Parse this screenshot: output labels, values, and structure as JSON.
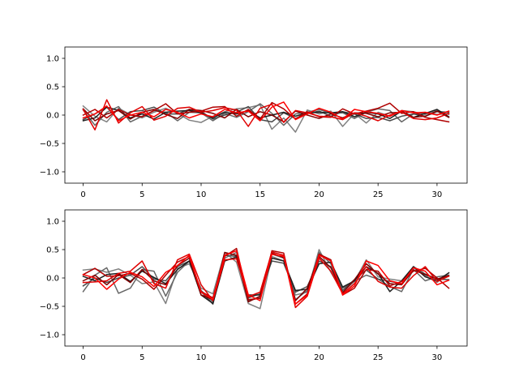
{
  "chart_data": [
    {
      "type": "line",
      "title": "",
      "xlabel": "",
      "ylabel": "",
      "xlim": [
        -1.55,
        32.55
      ],
      "ylim": [
        -1.2,
        1.2
      ],
      "xticks": [
        0,
        5,
        10,
        15,
        20,
        25,
        30
      ],
      "yticks": [
        -1.0,
        -0.5,
        0.0,
        0.5,
        1.0
      ],
      "xtick_labels": [
        "0",
        "5",
        "10",
        "15",
        "20",
        "25",
        "30"
      ],
      "ytick_labels": [
        "−1.0",
        "−0.5",
        "0.0",
        "0.5",
        "1.0"
      ],
      "grid": false,
      "x": [
        0,
        1,
        2,
        3,
        4,
        5,
        6,
        7,
        8,
        9,
        10,
        11,
        12,
        13,
        14,
        15,
        16,
        17,
        18,
        19,
        20,
        21,
        22,
        23,
        24,
        25,
        26,
        27,
        28,
        29,
        30,
        31
      ],
      "series": [
        {
          "color": "#808080",
          "values": [
            0.16,
            -0.02,
            -0.12,
            0.12,
            0.01,
            -0.05,
            0.05,
            0.12,
            0.03,
            -0.09,
            -0.13,
            -0.02,
            0.06,
            0.11,
            0.13,
            0.18,
            -0.25,
            -0.05,
            -0.3,
            0.09,
            0.02,
            0.07,
            -0.2,
            0.03,
            -0.14,
            0.05,
            -0.02,
            0.08,
            0.06,
            0.01,
            0.08,
            0.01
          ]
        },
        {
          "color": "#666666",
          "values": [
            0.09,
            -0.18,
            0.05,
            0.15,
            -0.12,
            -0.02,
            0.08,
            0.05,
            -0.1,
            0.05,
            0.04,
            -0.1,
            0.03,
            -0.04,
            0.06,
            0.2,
            0.03,
            -0.18,
            0.02,
            0.05,
            0.1,
            0.03,
            0.04,
            -0.06,
            0.05,
            0.11,
            0.08,
            -0.12,
            0.02,
            0.03,
            0.01,
            0.03
          ]
        },
        {
          "color": "#4a4a4a",
          "values": [
            -0.08,
            0.02,
            0.14,
            -0.08,
            0.06,
            0.08,
            0.14,
            0.02,
            0.02,
            0.1,
            0.06,
            -0.07,
            0.0,
            0.05,
            0.15,
            -0.08,
            -0.12,
            0.04,
            -0.06,
            0.03,
            0.07,
            -0.02,
            0.06,
            0.02,
            -0.06,
            -0.04,
            -0.1,
            -0.02,
            0.02,
            -0.02,
            0.06,
            0.05
          ]
        },
        {
          "color": "#202020",
          "values": [
            -0.1,
            -0.05,
            0.14,
            0.08,
            -0.05,
            0.02,
            -0.07,
            0.05,
            0.07,
            0.08,
            0.04,
            -0.05,
            0.05,
            0.02,
            0.08,
            -0.05,
            0.0,
            0.05,
            -0.02,
            0.04,
            0.05,
            0.04,
            0.06,
            -0.03,
            0.05,
            0.02,
            -0.06,
            0.07,
            -0.04,
            0.03,
            0.1,
            -0.03
          ]
        },
        {
          "color": "#800000",
          "values": [
            0.11,
            -0.1,
            0.02,
            0.08,
            -0.07,
            0.05,
            0.1,
            0.01,
            -0.06,
            0.1,
            0.08,
            0.03,
            -0.05,
            0.1,
            -0.03,
            0.06,
            0.0,
            -0.12,
            0.07,
            0.0,
            -0.06,
            0.02,
            -0.05,
            0.04,
            0.03,
            -0.03,
            0.04,
            0.05,
            -0.04,
            -0.02,
            0.07,
            -0.04
          ]
        },
        {
          "color": "#b00000",
          "values": [
            0.0,
            0.1,
            -0.05,
            0.1,
            0.0,
            -0.03,
            0.08,
            0.2,
            0.02,
            0.05,
            0.07,
            0.14,
            0.15,
            -0.02,
            0.1,
            -0.07,
            0.22,
            0.11,
            -0.07,
            0.06,
            -0.03,
            -0.04,
            0.11,
            0.02,
            0.07,
            0.12,
            0.21,
            0.03,
            0.06,
            -0.04,
            -0.08,
            -0.12
          ]
        },
        {
          "color": "#e00000",
          "values": [
            0.1,
            -0.26,
            0.27,
            -0.14,
            0.04,
            0.15,
            -0.09,
            -0.02,
            0.12,
            0.14,
            0.05,
            0.08,
            0.13,
            0.09,
            -0.2,
            0.12,
            0.19,
            -0.13,
            0.08,
            0.04,
            -0.02,
            -0.03,
            -0.08,
            0.04,
            -0.02,
            -0.1,
            0.0,
            0.06,
            -0.06,
            -0.08,
            -0.05,
            0.03
          ]
        },
        {
          "color": "#ff0000",
          "values": [
            -0.05,
            0.02,
            0.16,
            -0.1,
            0.0,
            0.05,
            -0.03,
            0.1,
            0.05,
            -0.05,
            0.02,
            -0.03,
            0.1,
            0.04,
            0.07,
            -0.1,
            0.14,
            0.23,
            -0.08,
            0.02,
            0.12,
            0.05,
            -0.07,
            0.1,
            0.06,
            0.03,
            -0.02,
            0.08,
            0.04,
            0.05,
            0.0,
            0.07
          ]
        }
      ]
    },
    {
      "type": "line",
      "title": "",
      "xlabel": "",
      "ylabel": "",
      "xlim": [
        -1.55,
        32.55
      ],
      "ylim": [
        -1.2,
        1.2
      ],
      "xticks": [
        0,
        5,
        10,
        15,
        20,
        25,
        30
      ],
      "yticks": [
        -1.0,
        -0.5,
        0.0,
        0.5,
        1.0
      ],
      "xtick_labels": [
        "0",
        "5",
        "10",
        "15",
        "20",
        "25",
        "30"
      ],
      "ytick_labels": [
        "−1.0",
        "−0.5",
        "0.0",
        "0.5",
        "1.0"
      ],
      "grid": false,
      "x": [
        0,
        1,
        2,
        3,
        4,
        5,
        6,
        7,
        8,
        9,
        10,
        11,
        12,
        13,
        14,
        15,
        16,
        17,
        18,
        19,
        20,
        21,
        22,
        23,
        24,
        25,
        26,
        27,
        28,
        29,
        30,
        31
      ],
      "series": [
        {
          "color": "#808080",
          "values": [
            0.14,
            0.16,
            0.1,
            0.16,
            0.05,
            -0.1,
            -0.07,
            -0.45,
            0.17,
            0.25,
            -0.18,
            -0.28,
            0.45,
            0.28,
            -0.45,
            -0.54,
            0.38,
            0.3,
            -0.3,
            -0.25,
            0.5,
            0.1,
            -0.25,
            -0.06,
            0.32,
            0.02,
            -0.02,
            -0.05,
            0.18,
            0.04,
            -0.08,
            0.09
          ]
        },
        {
          "color": "#666666",
          "values": [
            -0.24,
            0.05,
            0.18,
            -0.27,
            -0.18,
            0.15,
            0.12,
            -0.32,
            0.1,
            0.3,
            -0.22,
            -0.42,
            0.35,
            0.45,
            -0.4,
            -0.35,
            0.42,
            0.35,
            -0.38,
            -0.22,
            0.45,
            0.25,
            -0.18,
            -0.06,
            0.05,
            -0.02,
            -0.15,
            -0.24,
            0.15,
            -0.05,
            0.02,
            0.05
          ]
        },
        {
          "color": "#4a4a4a",
          "values": [
            -0.14,
            0.0,
            -0.08,
            0.0,
            0.05,
            0.2,
            -0.02,
            -0.05,
            0.2,
            0.3,
            -0.24,
            -0.46,
            0.4,
            0.38,
            -0.35,
            -0.28,
            0.3,
            0.26,
            -0.25,
            -0.15,
            0.3,
            0.2,
            -0.22,
            -0.03,
            0.14,
            -0.02,
            -0.06,
            -0.1,
            0.2,
            0.07,
            -0.02,
            -0.03
          ]
        },
        {
          "color": "#202020",
          "values": [
            0.03,
            -0.05,
            0.06,
            0.08,
            -0.06,
            0.12,
            0.01,
            -0.1,
            0.15,
            0.3,
            -0.3,
            -0.45,
            0.3,
            0.37,
            -0.3,
            -0.3,
            0.35,
            0.3,
            -0.22,
            -0.2,
            0.25,
            0.28,
            -0.16,
            -0.05,
            0.2,
            0.08,
            -0.24,
            -0.05,
            0.2,
            0.02,
            -0.05,
            0.09
          ]
        },
        {
          "color": "#800000",
          "values": [
            -0.05,
            0.05,
            -0.12,
            0.06,
            -0.08,
            0.15,
            -0.05,
            -0.12,
            0.22,
            0.35,
            -0.3,
            -0.38,
            0.45,
            0.4,
            -0.42,
            -0.32,
            0.44,
            0.36,
            -0.4,
            -0.18,
            0.38,
            0.18,
            -0.26,
            -0.03,
            0.25,
            0.07,
            -0.1,
            -0.12,
            0.14,
            0.06,
            -0.02,
            0.04
          ]
        },
        {
          "color": "#b00000",
          "values": [
            0.06,
            0.17,
            0.03,
            0.04,
            0.08,
            -0.02,
            -0.2,
            0.05,
            0.28,
            0.38,
            -0.24,
            -0.35,
            0.38,
            0.52,
            -0.38,
            -0.36,
            0.48,
            0.44,
            -0.46,
            -0.28,
            0.42,
            0.32,
            -0.3,
            -0.18,
            0.15,
            0.12,
            -0.14,
            -0.06,
            0.12,
            0.17,
            0.0,
            -0.18
          ]
        },
        {
          "color": "#e00000",
          "values": [
            -0.08,
            -0.07,
            -0.05,
            0.08,
            0.12,
            0.3,
            -0.1,
            -0.18,
            0.32,
            0.42,
            -0.12,
            -0.4,
            0.32,
            0.34,
            -0.33,
            -0.25,
            0.46,
            0.4,
            -0.52,
            -0.32,
            0.35,
            0.12,
            -0.28,
            -0.1,
            0.2,
            -0.06,
            -0.16,
            -0.18,
            0.04,
            0.2,
            -0.06,
            0.03
          ]
        },
        {
          "color": "#ff0000",
          "values": [
            0.06,
            0.0,
            -0.2,
            -0.02,
            0.1,
            0.02,
            -0.15,
            0.1,
            0.22,
            0.4,
            -0.25,
            -0.38,
            0.4,
            0.48,
            -0.3,
            -0.4,
            0.42,
            0.38,
            -0.46,
            -0.3,
            0.4,
            0.3,
            -0.3,
            -0.14,
            0.3,
            0.22,
            -0.05,
            -0.1,
            0.18,
            0.12,
            -0.12,
            -0.04
          ]
        }
      ]
    }
  ]
}
